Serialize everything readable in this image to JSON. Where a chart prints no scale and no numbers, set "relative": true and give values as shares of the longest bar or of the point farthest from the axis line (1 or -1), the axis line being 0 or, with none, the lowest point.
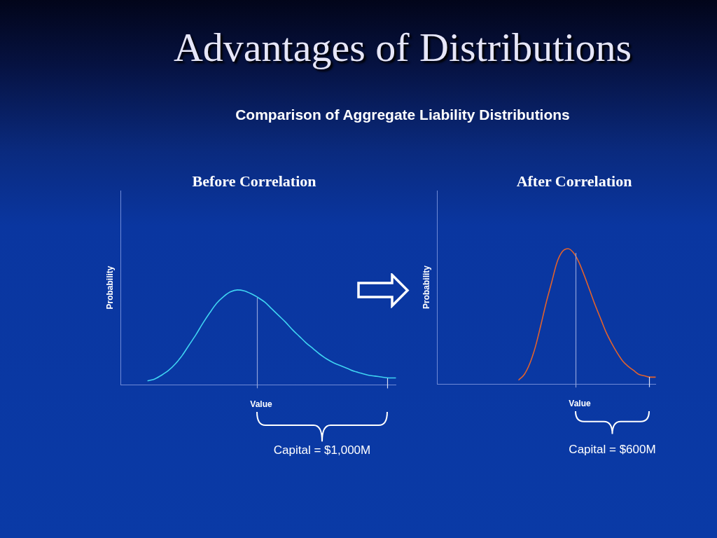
{
  "chart_data": [
    {
      "type": "other",
      "title": "Advantages of Distributions",
      "subtitle": "Comparison of Aggregate Liability Distributions"
    },
    {
      "type": "line",
      "title": "Before Correlation",
      "xlabel": "Value",
      "ylabel": "Probability",
      "relative": true,
      "marker": "none",
      "line_style": "solid",
      "color": "#3fd3f2",
      "categories": [
        null,
        null,
        null,
        null,
        null,
        null,
        null,
        null,
        null,
        null,
        null,
        null,
        null,
        null,
        null,
        null,
        null,
        null,
        null,
        null,
        null,
        null,
        null,
        null,
        null,
        null,
        null,
        null,
        null,
        null,
        null,
        null,
        null,
        null,
        null,
        null,
        null,
        null,
        null,
        null,
        null
      ],
      "values": [
        null,
        null,
        null,
        null,
        0.04,
        0.06,
        0.1,
        0.15,
        0.22,
        0.31,
        0.42,
        0.53,
        0.65,
        0.76,
        0.86,
        0.93,
        0.98,
        1,
        0.99,
        0.96,
        0.92,
        0.87,
        0.8,
        0.73,
        0.66,
        0.58,
        0.51,
        0.44,
        0.38,
        0.32,
        0.27,
        0.23,
        0.2,
        0.17,
        0.14,
        0.12,
        0.1,
        0.09,
        0.08,
        0.07,
        0.07
      ],
      "annotations": [
        "Capital = $1,000M"
      ]
    },
    {
      "type": "line",
      "title": "After Correlation",
      "xlabel": "Value",
      "ylabel": "Probability",
      "relative": true,
      "marker": "none",
      "line_style": "solid",
      "color": "#e2622c",
      "categories": [
        null,
        null,
        null,
        null,
        null,
        null,
        null,
        null,
        null,
        null,
        null,
        null,
        null,
        null,
        null,
        null,
        null,
        null,
        null,
        null,
        null,
        null,
        null,
        null,
        null,
        null,
        null,
        null,
        null,
        null,
        null,
        null,
        null,
        null,
        null,
        null,
        null,
        null,
        null,
        null,
        null
      ],
      "values": [
        null,
        null,
        null,
        null,
        null,
        null,
        null,
        null,
        null,
        null,
        null,
        null,
        null,
        null,
        null,
        0.03,
        0.07,
        0.15,
        0.27,
        0.43,
        0.6,
        0.75,
        0.9,
        0.98,
        1,
        0.97,
        0.9,
        0.8,
        0.69,
        0.58,
        0.48,
        0.38,
        0.3,
        0.23,
        0.17,
        0.13,
        0.1,
        0.07,
        0.06,
        0.05,
        0.05
      ],
      "annotations": [
        "Capital = $600M"
      ]
    }
  ]
}
